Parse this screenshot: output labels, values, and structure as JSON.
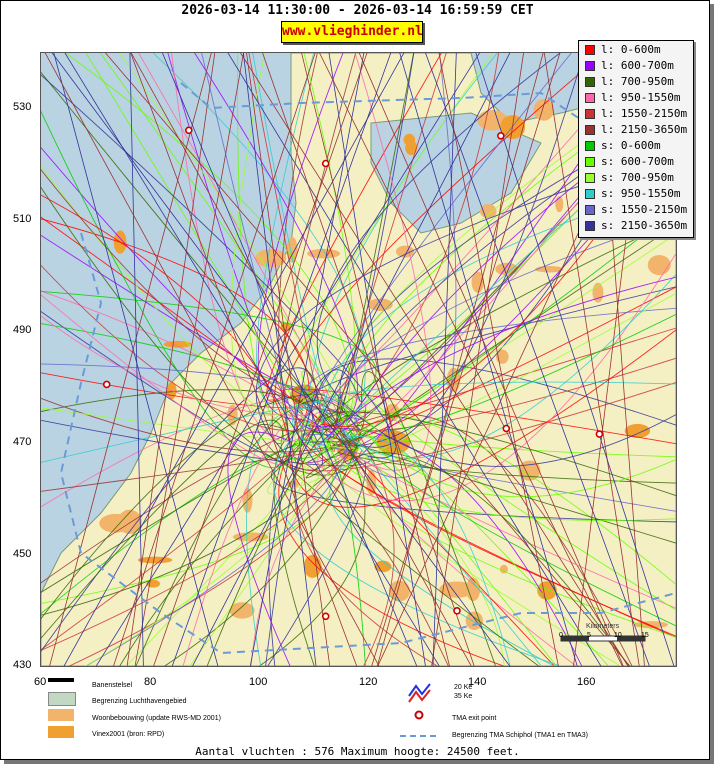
{
  "header": {
    "title": "2026-03-14 11:30:00 - 2026-03-14 16:59:59 CET",
    "site": "www.vlieghinder.nl"
  },
  "axes": {
    "y_ticks": [
      "530",
      "510",
      "490",
      "470",
      "450",
      "430"
    ],
    "x_ticks": [
      "60",
      "80",
      "100",
      "120",
      "140",
      "160"
    ]
  },
  "legend": [
    {
      "label": "l: 0-600m",
      "color": "#ff0000"
    },
    {
      "label": "l: 600-700m",
      "color": "#9900ff"
    },
    {
      "label": "l: 700-950m",
      "color": "#336600"
    },
    {
      "label": "l: 950-1550m",
      "color": "#ff66aa"
    },
    {
      "label": "l: 1550-2150m",
      "color": "#cc3333"
    },
    {
      "label": "l: 2150-3650m",
      "color": "#993333"
    },
    {
      "label": "s: 0-600m",
      "color": "#00cc00"
    },
    {
      "label": "s: 600-700m",
      "color": "#66ff00"
    },
    {
      "label": "s: 700-950m",
      "color": "#99ff33"
    },
    {
      "label": "s: 950-1550m",
      "color": "#33cccc"
    },
    {
      "label": "s: 1550-2150m",
      "color": "#6666cc"
    },
    {
      "label": "s: 2150-3650m",
      "color": "#333399"
    }
  ],
  "bottom_legend": {
    "banenstelsel": "Banenstelsel",
    "luchthaven": "Begrenzing Luchthavengebied",
    "woon": "Woonbebouwing (update RWS-MD 2001)",
    "vinex": "Vinex2001 (bron: RPD)",
    "ke20": "20 Ke",
    "ke35": "35 Ke",
    "tma_exit": "TMA exit point",
    "tma_border": "Begrenzing TMA Schiphol  (TMA1 en TMA3)"
  },
  "scale_bar": {
    "label": "Kilometers",
    "ticks": [
      "0",
      "5",
      "10",
      "15"
    ]
  },
  "footer": "Aantal vluchten : 576 Maximum hoogte: 24500 feet.",
  "chart_data": {
    "type": "map",
    "title": "2026-03-14 11:30:00 - 2026-03-14 16:59:59 CET",
    "x_ticks": [
      60,
      80,
      100,
      120,
      140,
      160
    ],
    "y_ticks": [
      430,
      450,
      470,
      490,
      510,
      530
    ],
    "xlim": [
      60,
      176
    ],
    "ylim": [
      430,
      541
    ],
    "flight_count": 576,
    "max_altitude_feet": 24500,
    "tma_exit_points": [
      [
        87,
        527
      ],
      [
        112,
        521
      ],
      [
        144,
        526
      ],
      [
        72,
        481
      ],
      [
        145,
        473
      ],
      [
        162,
        472
      ],
      [
        112,
        439
      ],
      [
        136,
        440
      ]
    ],
    "colors": {
      "water": "#b9d3e2",
      "land": "#f5f0c4",
      "urban": "#f2b46a"
    }
  }
}
